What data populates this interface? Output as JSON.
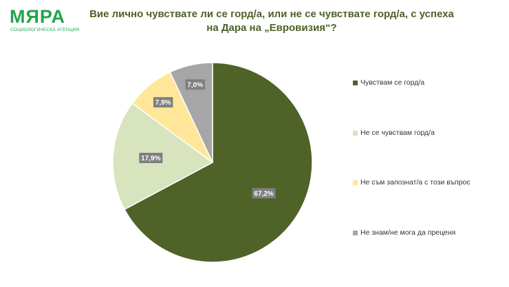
{
  "logo": {
    "name": "МЯРА",
    "subtitle": "СОЦИОЛОГИЧЕСКА АГЕНЦИЯ"
  },
  "colors": {
    "brand": "#1fa64a",
    "title": "#4d6128",
    "label_box": "#7f7f7f"
  },
  "chart_data": {
    "type": "pie",
    "title_lines": [
      "Вие лично чувствате ли се горд/а, или не се чувствате горд/а, с успеха",
      "на Дара на „Евровизия“?"
    ],
    "start_angle_deg": 0,
    "direction": "clockwise",
    "legend_position": "right",
    "slices": [
      {
        "name": "Чувствам се горд/а",
        "value": 67.2,
        "label": "67,2%",
        "color": "#4f6228"
      },
      {
        "name": "Не се чувствам горд/а",
        "value": 17.9,
        "label": "17,9%",
        "color": "#d7e4bd"
      },
      {
        "name": "Не съм запознат/а с този въпрос",
        "value": 7.9,
        "label": "7,9%",
        "color": "#ffe699"
      },
      {
        "name": "Не знам/не мога да преценя",
        "value": 7.0,
        "label": "7,0%",
        "color": "#a6a6a6"
      }
    ]
  }
}
